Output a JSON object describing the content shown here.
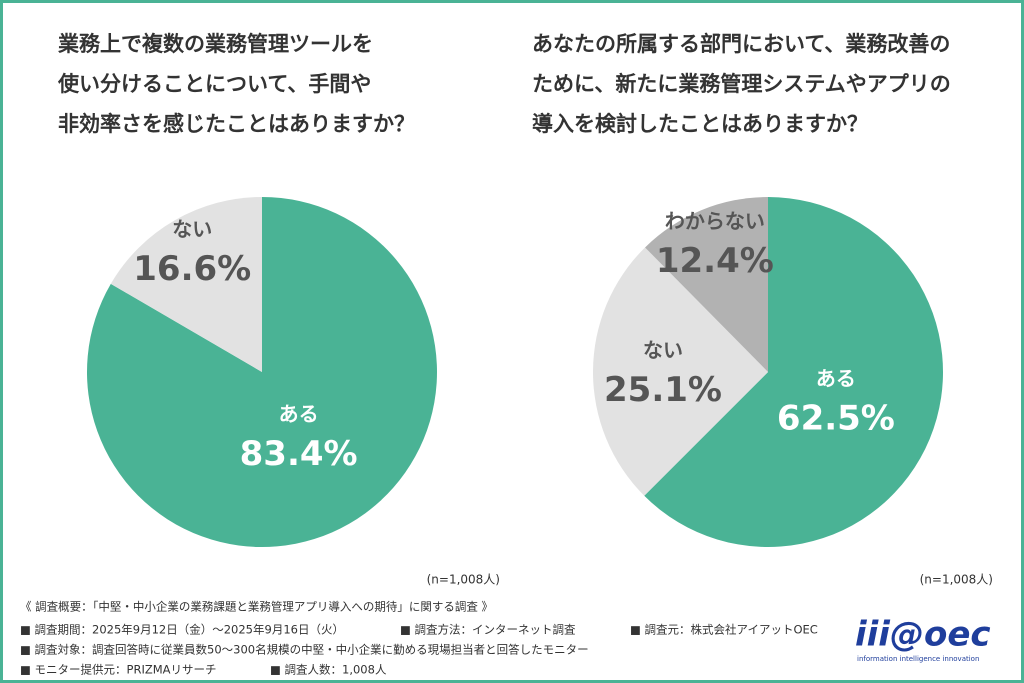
{
  "chart_data": [
    {
      "type": "pie",
      "title": [
        "業務上で複数の業務管理ツールを",
        "使い分けることについて、手間や",
        "非効率さを感じたことはありますか？"
      ],
      "categories": [
        "ある",
        "ない"
      ],
      "values": [
        83.4,
        16.6
      ],
      "value_labels": [
        "83.4%",
        "16.6%"
      ],
      "colors": [
        "#4ab395",
        "#e2e2e2"
      ],
      "note": "(n=1,008人)"
    },
    {
      "type": "pie",
      "title": [
        "あなたの所属する部門において、業務改善の",
        "ために、新たに業務管理システムやアプリの",
        "導入を検討したことはありますか？"
      ],
      "categories": [
        "ある",
        "ない",
        "わからない"
      ],
      "values": [
        62.5,
        25.1,
        12.4
      ],
      "value_labels": [
        "62.5%",
        "25.1%",
        "12.4%"
      ],
      "colors": [
        "#4ab395",
        "#e2e2e2",
        "#b2b2b2"
      ],
      "note": "(n=1,008人)"
    }
  ],
  "survey": {
    "heading": "《 調査概要：「中堅・中小企業の業務課題と業務管理アプリ導入への期待」に関する調査 》",
    "items": [
      "■ 調査期間：2025年9月12日（金）〜2025年9月16日（火）",
      "■ 調査方法：インターネット調査",
      "■ 調査元：株式会社アイアットOEC",
      "■ 調査対象：調査回答時に従業員数50〜300名規模の中堅・中小企業に勤める現場担当者と回答したモニター",
      "■ モニター提供元：PRIZMAリサーチ",
      "■ 調査人数：1,008人"
    ]
  },
  "logo": {
    "text": "iii@oec",
    "tagline": "information intelligence innovation"
  }
}
